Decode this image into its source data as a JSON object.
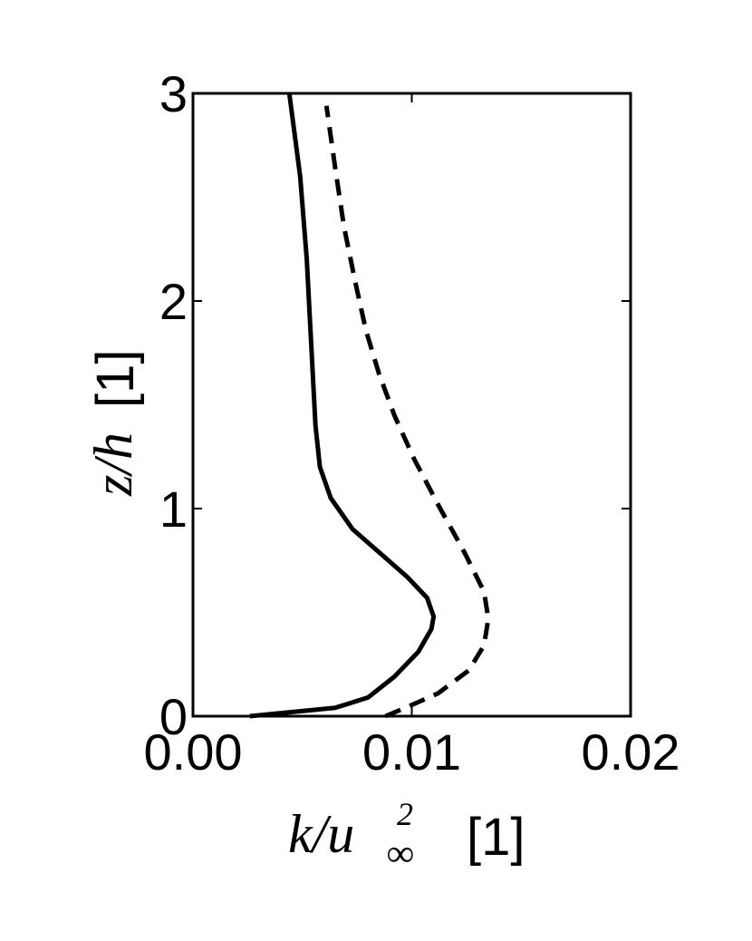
{
  "chart_data": {
    "type": "line",
    "xlabel_math": "k/u",
    "xlabel_sup": "2",
    "xlabel_sub": "∞",
    "xlabel_unit": "[1]",
    "ylabel_math": "z/h",
    "ylabel_unit": "[1]",
    "xlim": [
      0.0,
      0.02
    ],
    "ylim": [
      0,
      3
    ],
    "xticks": [
      "0.00",
      "0.01",
      "0.02"
    ],
    "yticks": [
      "0",
      "1",
      "2",
      "3"
    ],
    "grid": false,
    "series": [
      {
        "style": "solid",
        "color": "#000000",
        "points": [
          [
            0.0026,
            0.0
          ],
          [
            0.0065,
            0.04
          ],
          [
            0.008,
            0.09
          ],
          [
            0.0092,
            0.19
          ],
          [
            0.0103,
            0.31
          ],
          [
            0.0109,
            0.42
          ],
          [
            0.011,
            0.48
          ],
          [
            0.0107,
            0.57
          ],
          [
            0.0098,
            0.67
          ],
          [
            0.0085,
            0.79
          ],
          [
            0.0073,
            0.9
          ],
          [
            0.0063,
            1.05
          ],
          [
            0.0058,
            1.2
          ],
          [
            0.0056,
            1.4
          ],
          [
            0.0054,
            1.8
          ],
          [
            0.0052,
            2.2
          ],
          [
            0.0049,
            2.6
          ],
          [
            0.0044,
            3.0
          ]
        ]
      },
      {
        "style": "dashed",
        "color": "#000000",
        "points": [
          [
            0.0088,
            0.0
          ],
          [
            0.0097,
            0.04
          ],
          [
            0.0112,
            0.11
          ],
          [
            0.0126,
            0.22
          ],
          [
            0.0133,
            0.34
          ],
          [
            0.0135,
            0.47
          ],
          [
            0.0133,
            0.6
          ],
          [
            0.0124,
            0.79
          ],
          [
            0.0113,
            1.0
          ],
          [
            0.0101,
            1.24
          ],
          [
            0.0092,
            1.45
          ],
          [
            0.0085,
            1.65
          ],
          [
            0.0079,
            1.86
          ],
          [
            0.0074,
            2.1
          ],
          [
            0.0069,
            2.36
          ],
          [
            0.0065,
            2.64
          ],
          [
            0.0061,
            2.94
          ]
        ]
      }
    ]
  }
}
